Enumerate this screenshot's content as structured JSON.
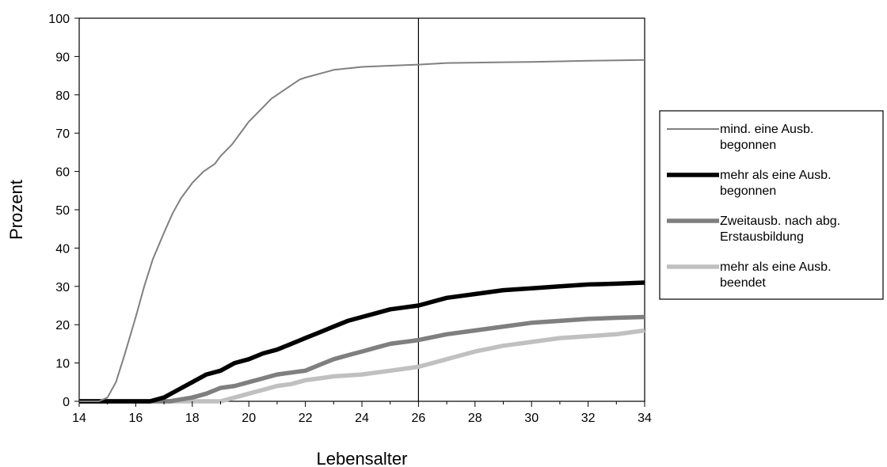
{
  "chart_data": {
    "type": "line",
    "xlabel": "Lebensalter",
    "ylabel": "Prozent",
    "xlim": [
      14,
      34
    ],
    "ylim": [
      0,
      100
    ],
    "x_ticks": [
      14,
      16,
      18,
      20,
      22,
      24,
      26,
      28,
      30,
      32,
      34
    ],
    "y_ticks": [
      0,
      10,
      20,
      30,
      40,
      50,
      60,
      70,
      80,
      90,
      100
    ],
    "grid": false,
    "legend_position": "right",
    "reference_line_x": 26,
    "series": [
      {
        "name": "mind. eine Ausb. begonnen",
        "color": "#808080",
        "style": "thin",
        "points": [
          [
            14,
            0
          ],
          [
            14.7,
            0
          ],
          [
            15,
            1
          ],
          [
            15.3,
            5
          ],
          [
            15.6,
            12
          ],
          [
            16,
            22
          ],
          [
            16.3,
            30
          ],
          [
            16.6,
            37
          ],
          [
            17,
            44
          ],
          [
            17.3,
            49
          ],
          [
            17.6,
            53
          ],
          [
            18,
            57
          ],
          [
            18.4,
            60
          ],
          [
            18.8,
            62
          ],
          [
            19,
            64
          ],
          [
            19.4,
            67
          ],
          [
            19.8,
            71
          ],
          [
            20,
            73
          ],
          [
            20.4,
            76
          ],
          [
            20.8,
            79
          ],
          [
            21,
            80
          ],
          [
            21.4,
            82
          ],
          [
            21.8,
            84
          ],
          [
            22,
            84.5
          ],
          [
            22.5,
            85.5
          ],
          [
            23,
            86.5
          ],
          [
            24,
            87.3
          ],
          [
            25,
            87.6
          ],
          [
            26,
            87.9
          ],
          [
            27,
            88.3
          ],
          [
            28,
            88.4
          ],
          [
            30,
            88.6
          ],
          [
            32,
            88.9
          ],
          [
            34,
            89.1
          ]
        ]
      },
      {
        "name": "mehr als eine Ausb. begonnen",
        "color": "#000000",
        "style": "thick",
        "points": [
          [
            14,
            0
          ],
          [
            16.5,
            0
          ],
          [
            17,
            1
          ],
          [
            17.5,
            3
          ],
          [
            18,
            5
          ],
          [
            18.5,
            7
          ],
          [
            19,
            8
          ],
          [
            19.5,
            10
          ],
          [
            20,
            11
          ],
          [
            20.5,
            12.5
          ],
          [
            21,
            13.5
          ],
          [
            21.5,
            15
          ],
          [
            22,
            16.5
          ],
          [
            22.5,
            18
          ],
          [
            23,
            19.5
          ],
          [
            23.5,
            21
          ],
          [
            24,
            22
          ],
          [
            24.5,
            23
          ],
          [
            25,
            24
          ],
          [
            26,
            25
          ],
          [
            27,
            27
          ],
          [
            28,
            28
          ],
          [
            29,
            29
          ],
          [
            30,
            29.5
          ],
          [
            31,
            30
          ],
          [
            32,
            30.5
          ],
          [
            33,
            30.7
          ],
          [
            34,
            31
          ]
        ]
      },
      {
        "name": "Zweitausb. nach abg. Erstausbildung",
        "color": "#7f7f7f",
        "style": "thick",
        "points": [
          [
            14,
            0
          ],
          [
            17.2,
            0
          ],
          [
            17.6,
            0.5
          ],
          [
            18,
            1
          ],
          [
            18.5,
            2
          ],
          [
            19,
            3.5
          ],
          [
            19.5,
            4
          ],
          [
            20,
            5
          ],
          [
            20.5,
            6
          ],
          [
            21,
            7
          ],
          [
            21.5,
            7.5
          ],
          [
            22,
            8
          ],
          [
            22.5,
            9.5
          ],
          [
            23,
            11
          ],
          [
            23.5,
            12
          ],
          [
            24,
            13
          ],
          [
            24.5,
            14
          ],
          [
            25,
            15
          ],
          [
            26,
            16
          ],
          [
            27,
            17.5
          ],
          [
            28,
            18.5
          ],
          [
            29,
            19.5
          ],
          [
            30,
            20.5
          ],
          [
            31,
            21
          ],
          [
            32,
            21.5
          ],
          [
            33,
            21.8
          ],
          [
            34,
            22
          ]
        ]
      },
      {
        "name": "mehr als eine Ausb. beendet",
        "color": "#c0c0c0",
        "style": "thick",
        "points": [
          [
            14,
            0
          ],
          [
            19,
            0
          ],
          [
            19.5,
            1
          ],
          [
            20,
            2
          ],
          [
            20.5,
            3
          ],
          [
            21,
            4
          ],
          [
            21.5,
            4.5
          ],
          [
            22,
            5.5
          ],
          [
            22.5,
            6
          ],
          [
            23,
            6.5
          ],
          [
            24,
            7
          ],
          [
            25,
            8
          ],
          [
            26,
            9
          ],
          [
            26.5,
            10
          ],
          [
            27,
            11
          ],
          [
            27.5,
            12
          ],
          [
            28,
            13
          ],
          [
            29,
            14.5
          ],
          [
            30,
            15.5
          ],
          [
            31,
            16.5
          ],
          [
            32,
            17
          ],
          [
            33,
            17.5
          ],
          [
            34,
            18.5
          ]
        ]
      }
    ]
  }
}
